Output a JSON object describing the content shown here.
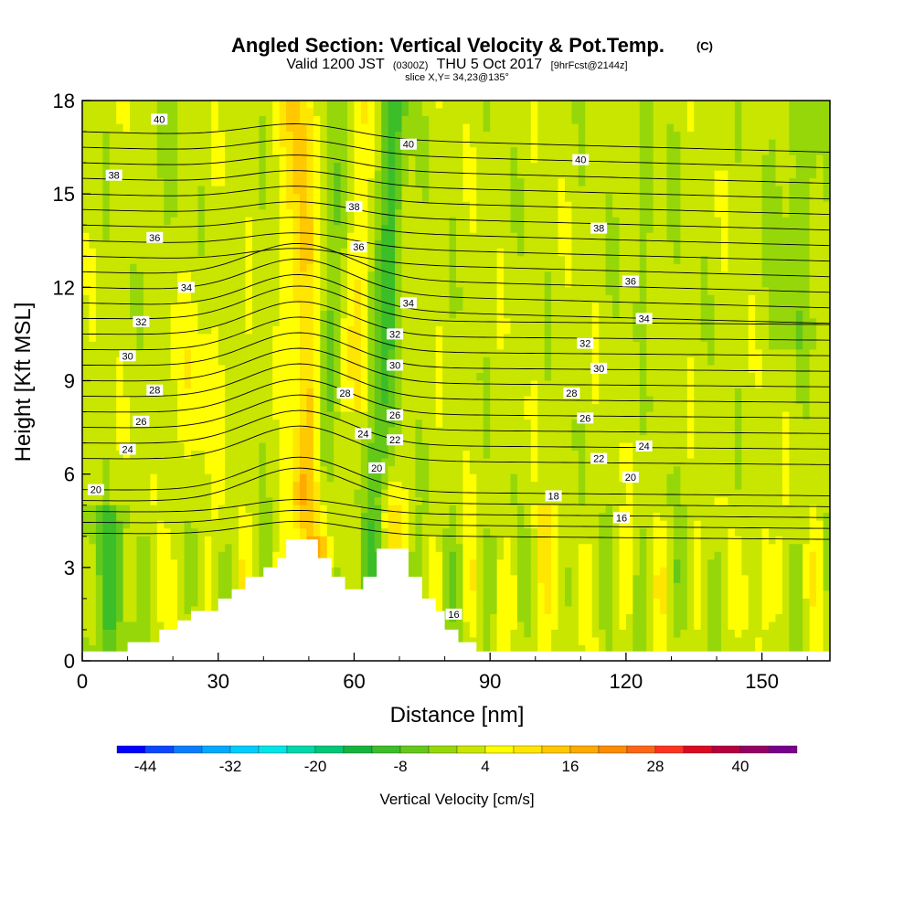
{
  "chart_data": {
    "type": "heatmap",
    "title": "Angled Section: Vertical Velocity & Pot.Temp.",
    "title_mark": "(C)",
    "subtitle_parts": [
      "Valid 1200 JST",
      "(0300Z)",
      "THU 5 Oct 2017",
      "[9hrFcst@2144z]"
    ],
    "subtitle2": "slice X,Y= 34,23@135°",
    "xlabel": "Distance [nm]",
    "ylabel": "Height [Kft MSL]",
    "xlim": [
      0,
      165
    ],
    "ylim": [
      0,
      18
    ],
    "x_ticks": [
      "0",
      "30",
      "60",
      "90",
      "120",
      "150"
    ],
    "y_ticks": [
      "0",
      "3",
      "6",
      "9",
      "12",
      "15",
      "18"
    ],
    "colorbar": {
      "label": "Vertical Velocity [cm/s]",
      "tick_labels": [
        "-44",
        "-32",
        "-20",
        "-8",
        "4",
        "16",
        "28",
        "40"
      ],
      "levels": [
        -48,
        -44,
        -40,
        -36,
        -32,
        -28,
        -24,
        -20,
        -16,
        -12,
        -8,
        -4,
        0,
        4,
        8,
        12,
        16,
        20,
        24,
        28,
        32,
        36,
        40,
        44,
        48
      ],
      "colors": [
        "#0000ff",
        "#0a46ff",
        "#0a7dff",
        "#00aaff",
        "#00cdff",
        "#00e6e6",
        "#00d7aa",
        "#00c878",
        "#14b43c",
        "#3cbe28",
        "#64c819",
        "#96d70a",
        "#c8e600",
        "#ffff00",
        "#ffe600",
        "#ffc800",
        "#ffaa00",
        "#ff8c00",
        "#ff6414",
        "#ff321e",
        "#dc0a1e",
        "#b4003c",
        "#960064",
        "#78008c"
      ]
    },
    "terrain_profile": [
      [
        0,
        0.3
      ],
      [
        10,
        0.3
      ],
      [
        10,
        0.6
      ],
      [
        17,
        0.6
      ],
      [
        17,
        1.0
      ],
      [
        21,
        1.0
      ],
      [
        21,
        1.3
      ],
      [
        24,
        1.3
      ],
      [
        24,
        1.6
      ],
      [
        30,
        1.6
      ],
      [
        30,
        2.0
      ],
      [
        33,
        2.0
      ],
      [
        33,
        2.3
      ],
      [
        36,
        2.3
      ],
      [
        36,
        2.7
      ],
      [
        40,
        2.7
      ],
      [
        40,
        3.0
      ],
      [
        43,
        3.0
      ],
      [
        43,
        3.3
      ],
      [
        45,
        3.3
      ],
      [
        45,
        3.9
      ],
      [
        52,
        3.9
      ],
      [
        52,
        3.3
      ],
      [
        55,
        3.3
      ],
      [
        55,
        2.7
      ],
      [
        58,
        2.7
      ],
      [
        58,
        2.3
      ],
      [
        62,
        2.3
      ],
      [
        62,
        2.7
      ],
      [
        65,
        2.7
      ],
      [
        65,
        3.6
      ],
      [
        72,
        3.6
      ],
      [
        72,
        2.7
      ],
      [
        75,
        2.7
      ],
      [
        75,
        2.0
      ],
      [
        78,
        2.0
      ],
      [
        78,
        1.6
      ],
      [
        80,
        1.6
      ],
      [
        80,
        1.0
      ],
      [
        83,
        1.0
      ],
      [
        83,
        0.6
      ],
      [
        87,
        0.6
      ],
      [
        87,
        0.3
      ],
      [
        165,
        0.3
      ]
    ],
    "theta_labels": [
      {
        "text": "40",
        "x": 17,
        "y": 17.4
      },
      {
        "text": "40",
        "x": 72,
        "y": 16.6
      },
      {
        "text": "40",
        "x": 110,
        "y": 16.1
      },
      {
        "text": "38",
        "x": 7,
        "y": 15.6
      },
      {
        "text": "38",
        "x": 60,
        "y": 14.6
      },
      {
        "text": "38",
        "x": 114,
        "y": 13.9
      },
      {
        "text": "36",
        "x": 16,
        "y": 13.6
      },
      {
        "text": "36",
        "x": 61,
        "y": 13.3
      },
      {
        "text": "36",
        "x": 121,
        "y": 12.2
      },
      {
        "text": "34",
        "x": 23,
        "y": 12.0
      },
      {
        "text": "34",
        "x": 72,
        "y": 11.5
      },
      {
        "text": "34",
        "x": 124,
        "y": 11.0
      },
      {
        "text": "32",
        "x": 13,
        "y": 10.9
      },
      {
        "text": "32",
        "x": 69,
        "y": 10.5
      },
      {
        "text": "32",
        "x": 111,
        "y": 10.2
      },
      {
        "text": "30",
        "x": 10,
        "y": 9.8
      },
      {
        "text": "30",
        "x": 69,
        "y": 9.5
      },
      {
        "text": "30",
        "x": 114,
        "y": 9.4
      },
      {
        "text": "28",
        "x": 16,
        "y": 8.7
      },
      {
        "text": "28",
        "x": 58,
        "y": 8.6
      },
      {
        "text": "28",
        "x": 108,
        "y": 8.6
      },
      {
        "text": "26",
        "x": 13,
        "y": 7.7
      },
      {
        "text": "26",
        "x": 69,
        "y": 7.9
      },
      {
        "text": "26",
        "x": 111,
        "y": 7.8
      },
      {
        "text": "24",
        "x": 10,
        "y": 6.8
      },
      {
        "text": "24",
        "x": 62,
        "y": 7.3
      },
      {
        "text": "24",
        "x": 124,
        "y": 6.9
      },
      {
        "text": "22",
        "x": 69,
        "y": 7.1
      },
      {
        "text": "22",
        "x": 114,
        "y": 6.5
      },
      {
        "text": "20",
        "x": 3,
        "y": 5.5
      },
      {
        "text": "20",
        "x": 65,
        "y": 6.2
      },
      {
        "text": "20",
        "x": 121,
        "y": 5.9
      },
      {
        "text": "18",
        "x": 104,
        "y": 5.3
      },
      {
        "text": "16",
        "x": 119,
        "y": 4.6
      },
      {
        "text": "16",
        "x": 82,
        "y": 1.5
      }
    ]
  }
}
